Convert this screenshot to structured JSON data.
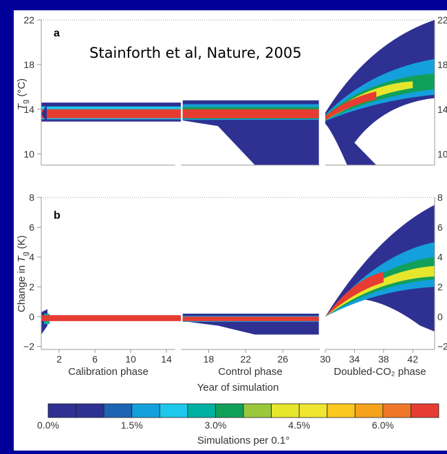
{
  "chart_data": {
    "type": "heatmap",
    "annotation": "Stainforth et al, Nature, 2005",
    "panel_a": {
      "letter": "a",
      "ylabel_main": "T",
      "ylabel_sub": "g",
      "ylabel_unit": "(°C)",
      "ylim": [
        9,
        22
      ],
      "yticks": [
        "22",
        "18",
        "14",
        "10"
      ],
      "right_yticks": [
        "22",
        "18",
        "14",
        "10"
      ],
      "calibration_band": {
        "lo": 12.9,
        "hi": 14.6,
        "core_lo": 13.2,
        "core_hi": 14.0
      },
      "control_band": {
        "lo": 13.0,
        "hi": 14.8,
        "core_lo": 13.2,
        "core_hi": 14.0,
        "lower_tail_end": 9.0
      },
      "doubled_spread": {
        "start": 13.2,
        "end_low": 15.0,
        "end_high": 22.0,
        "end_mode": 16.5
      }
    },
    "panel_b": {
      "letter": "b",
      "ylabel_prefix": "Change in ",
      "ylabel_main": "T",
      "ylabel_sub": "g",
      "ylabel_unit": " (K)",
      "ylim": [
        -2.2,
        8
      ],
      "yticks": [
        "8",
        "6",
        "4",
        "2",
        "0",
        "−2"
      ],
      "right_yticks": [
        "8",
        "6",
        "4",
        "2",
        "0",
        "−2"
      ],
      "calibration_band": {
        "lo": -0.3,
        "hi": 0.1
      },
      "control_band": {
        "lo": -1.2,
        "hi": 0.2
      },
      "doubled_spread": {
        "start": 0.0,
        "end_low": 1.2,
        "end_high": 7.5,
        "end_mode": 3.0
      }
    },
    "x_phases": [
      {
        "name": "Calibration phase",
        "ticks": [
          "2",
          "6",
          "10",
          "14"
        ],
        "tick_values": [
          2,
          6,
          10,
          14
        ],
        "range": [
          0,
          15
        ]
      },
      {
        "name": "Control phase",
        "ticks": [
          "18",
          "22",
          "26"
        ],
        "tick_values": [
          18,
          22,
          26
        ],
        "range": [
          15,
          30
        ]
      },
      {
        "name": "Doubled-CO₂ phase",
        "ticks": [
          "30",
          "34",
          "38",
          "42"
        ],
        "tick_values": [
          30,
          34,
          38,
          42
        ],
        "range": [
          30,
          45
        ]
      }
    ],
    "xlabel": "Year of simulation",
    "colorbar": {
      "colors": [
        "#2e3192",
        "#2e3192",
        "#1e64b4",
        "#14a0dc",
        "#1ec8ec",
        "#00b0a0",
        "#11a05a",
        "#9ac83c",
        "#e6e62d",
        "#f0e632",
        "#fac81e",
        "#f7a21b",
        "#ef7828",
        "#e63c32"
      ],
      "tick_labels": [
        "0.0%",
        "1.5%",
        "3.0%",
        "4.5%",
        "6.0%"
      ],
      "tick_values": [
        0.0,
        1.5,
        3.0,
        4.5,
        6.0
      ],
      "range": [
        0,
        7
      ],
      "label": "Simulations per 0.1°"
    }
  }
}
